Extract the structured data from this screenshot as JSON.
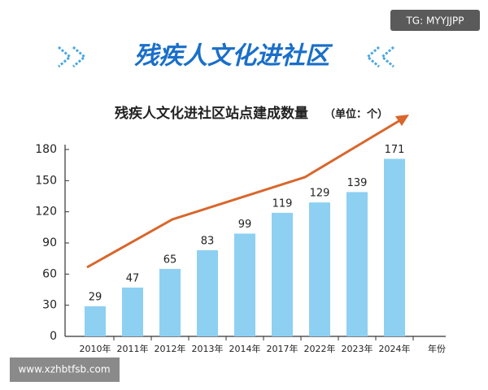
{
  "watermark_top": "TG: MYYJJPP",
  "banner_title": "残疾人文化进社区",
  "watermark_bottom": "www.xzhbtfsb.com",
  "chart_data": {
    "type": "bar",
    "title": "残疾人文化进社区站点建成数量",
    "subtitle": "（单位：个）",
    "x_label": "年份",
    "categories": [
      "2010年",
      "2011年",
      "2012年",
      "2013年",
      "2014年",
      "2017年",
      "2022年",
      "2023年",
      "2024年"
    ],
    "values": [
      29,
      47,
      65,
      83,
      99,
      119,
      129,
      139,
      171
    ],
    "color": "#8dd0f2",
    "ylim": [
      0,
      180
    ],
    "yticks": [
      0,
      30,
      60,
      90,
      120,
      150,
      180
    ]
  }
}
